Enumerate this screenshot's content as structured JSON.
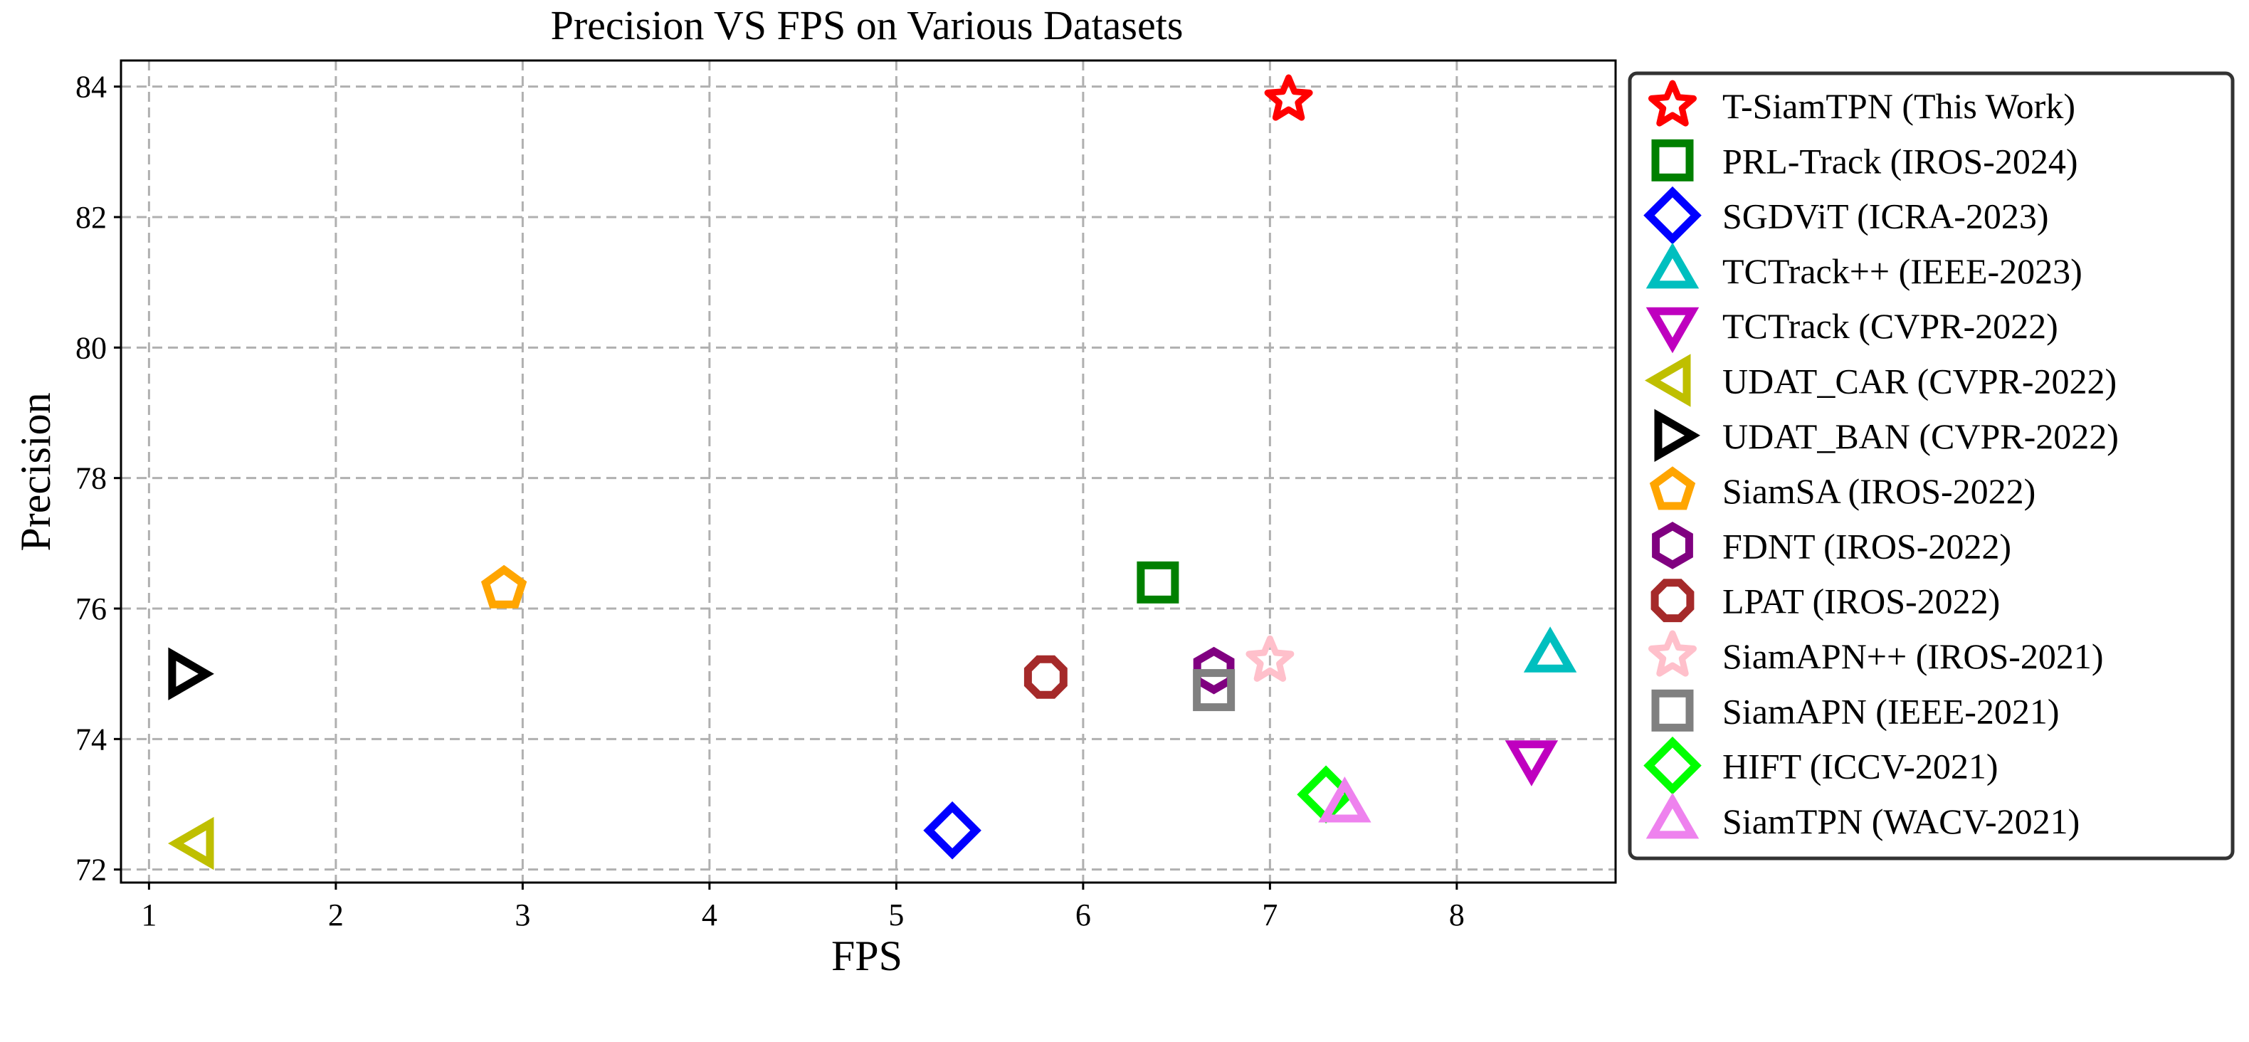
{
  "chart_data": {
    "type": "scatter",
    "title": "Precision VS FPS on Various Datasets",
    "xlabel": "FPS",
    "ylabel": "Precision",
    "xlim": [
      0.85,
      8.85
    ],
    "ylim": [
      71.8,
      84.4
    ],
    "xticks": [
      1,
      2,
      3,
      4,
      5,
      6,
      7,
      8
    ],
    "yticks": [
      72,
      74,
      76,
      78,
      80,
      82,
      84
    ],
    "grid": true,
    "legend_position": "outside-right",
    "series": [
      {
        "name": "T-SiamTPN (This Work)",
        "x": 7.1,
        "y": 83.8,
        "marker": "star",
        "color": "#ff0000"
      },
      {
        "name": "PRL-Track (IROS-2024)",
        "x": 6.4,
        "y": 76.4,
        "marker": "square",
        "color": "#008000"
      },
      {
        "name": "SGDViT (ICRA-2023)",
        "x": 5.3,
        "y": 72.6,
        "marker": "diamond",
        "color": "#0000ff"
      },
      {
        "name": "TCTrack++ (IEEE-2023)",
        "x": 8.5,
        "y": 75.3,
        "marker": "triangle-up",
        "color": "#00bfbf"
      },
      {
        "name": "TCTrack (CVPR-2022)",
        "x": 8.4,
        "y": 73.7,
        "marker": "triangle-down",
        "color": "#bf00bf"
      },
      {
        "name": "UDAT_CAR (CVPR-2022)",
        "x": 1.25,
        "y": 72.4,
        "marker": "triangle-left",
        "color": "#bfbf00"
      },
      {
        "name": "UDAT_BAN (CVPR-2022)",
        "x": 1.2,
        "y": 75.0,
        "marker": "triangle-right",
        "color": "#000000"
      },
      {
        "name": "SiamSA (IROS-2022)",
        "x": 2.9,
        "y": 76.3,
        "marker": "pentagon",
        "color": "#ffa500"
      },
      {
        "name": "FDNT (IROS-2022)",
        "x": 6.7,
        "y": 75.05,
        "marker": "hexagon",
        "color": "#800080"
      },
      {
        "name": "LPAT (IROS-2022)",
        "x": 5.8,
        "y": 74.95,
        "marker": "octagon",
        "color": "#a52a2a"
      },
      {
        "name": "SiamAPN++ (IROS-2021)",
        "x": 7.0,
        "y": 75.2,
        "marker": "star",
        "color": "#ffc0cb"
      },
      {
        "name": "SiamAPN (IEEE-2021)",
        "x": 6.7,
        "y": 74.75,
        "marker": "square",
        "color": "#808080"
      },
      {
        "name": "HIFT (ICCV-2021)",
        "x": 7.3,
        "y": 73.15,
        "marker": "diamond",
        "color": "#00ff00"
      },
      {
        "name": "SiamTPN (WACV-2021)",
        "x": 7.4,
        "y": 73.0,
        "marker": "triangle-up",
        "color": "#ee82ee"
      }
    ]
  }
}
